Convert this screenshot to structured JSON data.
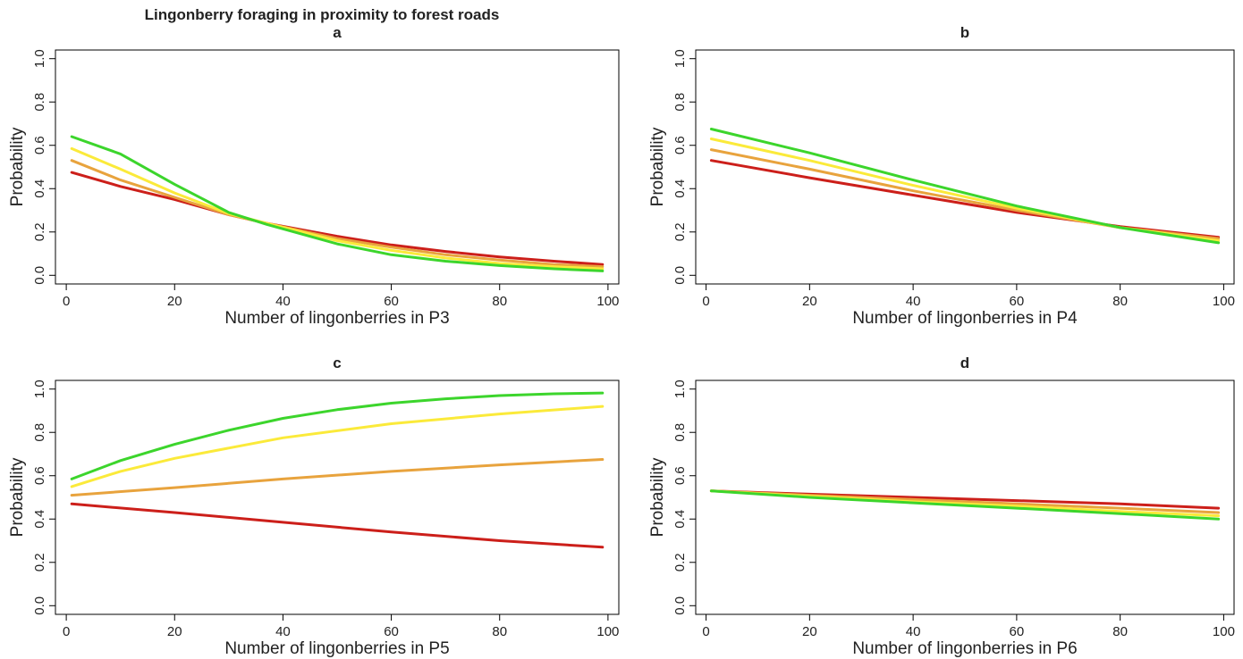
{
  "figure": {
    "title": "Lingonberry foraging in proximity to forest roads"
  },
  "colors": {
    "red": "#cc1f1a",
    "orange": "#e8a33d",
    "yellow": "#fbea3a",
    "green": "#3cd52c"
  },
  "chart_data": [
    {
      "type": "line",
      "panel": "a",
      "title": "a",
      "xlabel": "Number of lingonberries in P3",
      "ylabel": "Probability",
      "xlim": [
        -2,
        102
      ],
      "ylim": [
        -0.04,
        1.04
      ],
      "xticks": [
        0,
        20,
        40,
        60,
        80,
        100
      ],
      "yticks": [
        0.0,
        0.2,
        0.4,
        0.6,
        0.8,
        1.0
      ],
      "grid": false,
      "series": [
        {
          "color": "red",
          "x": [
            1,
            10,
            20,
            30,
            37,
            50,
            60,
            70,
            80,
            90,
            99
          ],
          "y": [
            0.475,
            0.41,
            0.35,
            0.28,
            0.24,
            0.18,
            0.14,
            0.11,
            0.085,
            0.065,
            0.05
          ]
        },
        {
          "color": "orange",
          "x": [
            1,
            10,
            20,
            30,
            37,
            50,
            60,
            70,
            80,
            90,
            99
          ],
          "y": [
            0.53,
            0.44,
            0.36,
            0.28,
            0.24,
            0.17,
            0.13,
            0.095,
            0.07,
            0.05,
            0.04
          ]
        },
        {
          "color": "yellow",
          "x": [
            1,
            10,
            20,
            30,
            37,
            50,
            60,
            70,
            80,
            90,
            99
          ],
          "y": [
            0.585,
            0.49,
            0.38,
            0.285,
            0.24,
            0.16,
            0.115,
            0.08,
            0.055,
            0.04,
            0.03
          ]
        },
        {
          "color": "green",
          "x": [
            1,
            10,
            20,
            30,
            37,
            50,
            60,
            70,
            80,
            90,
            99
          ],
          "y": [
            0.64,
            0.56,
            0.42,
            0.29,
            0.235,
            0.145,
            0.095,
            0.065,
            0.045,
            0.03,
            0.02
          ]
        }
      ]
    },
    {
      "type": "line",
      "panel": "b",
      "title": "b",
      "xlabel": "Number of lingonberries in P4",
      "ylabel": "Probability",
      "xlim": [
        -2,
        102
      ],
      "ylim": [
        -0.04,
        1.04
      ],
      "xticks": [
        0,
        20,
        40,
        60,
        80,
        100
      ],
      "yticks": [
        0.0,
        0.2,
        0.4,
        0.6,
        0.8,
        1.0
      ],
      "grid": false,
      "series": [
        {
          "color": "red",
          "x": [
            1,
            20,
            40,
            60,
            80,
            99
          ],
          "y": [
            0.53,
            0.45,
            0.37,
            0.29,
            0.225,
            0.175
          ]
        },
        {
          "color": "orange",
          "x": [
            1,
            20,
            40,
            60,
            80,
            99
          ],
          "y": [
            0.58,
            0.49,
            0.39,
            0.3,
            0.22,
            0.17
          ]
        },
        {
          "color": "yellow",
          "x": [
            1,
            20,
            40,
            60,
            80,
            99
          ],
          "y": [
            0.63,
            0.53,
            0.415,
            0.31,
            0.22,
            0.16
          ]
        },
        {
          "color": "green",
          "x": [
            1,
            20,
            40,
            60,
            80,
            99
          ],
          "y": [
            0.675,
            0.565,
            0.44,
            0.32,
            0.22,
            0.15
          ]
        }
      ]
    },
    {
      "type": "line",
      "panel": "c",
      "title": "c",
      "xlabel": "Number of lingonberries in P5",
      "ylabel": "Probability",
      "xlim": [
        -2,
        102
      ],
      "ylim": [
        -0.04,
        1.04
      ],
      "xticks": [
        0,
        20,
        40,
        60,
        80,
        100
      ],
      "yticks": [
        0.0,
        0.2,
        0.4,
        0.6,
        0.8,
        1.0
      ],
      "grid": false,
      "series": [
        {
          "color": "red",
          "x": [
            1,
            20,
            40,
            60,
            80,
            99
          ],
          "y": [
            0.47,
            0.43,
            0.385,
            0.34,
            0.3,
            0.27
          ]
        },
        {
          "color": "orange",
          "x": [
            1,
            20,
            40,
            60,
            80,
            99
          ],
          "y": [
            0.51,
            0.545,
            0.585,
            0.62,
            0.65,
            0.675
          ]
        },
        {
          "color": "yellow",
          "x": [
            1,
            10,
            20,
            40,
            60,
            80,
            99
          ],
          "y": [
            0.55,
            0.62,
            0.68,
            0.775,
            0.84,
            0.885,
            0.92
          ]
        },
        {
          "color": "green",
          "x": [
            1,
            10,
            20,
            30,
            40,
            50,
            60,
            70,
            80,
            90,
            99
          ],
          "y": [
            0.585,
            0.67,
            0.745,
            0.81,
            0.865,
            0.905,
            0.935,
            0.955,
            0.97,
            0.978,
            0.982
          ]
        }
      ]
    },
    {
      "type": "line",
      "panel": "d",
      "title": "d",
      "xlabel": "Number of lingonberries in P6",
      "ylabel": "Probability",
      "xlim": [
        -2,
        102
      ],
      "ylim": [
        -0.04,
        1.04
      ],
      "xticks": [
        0,
        20,
        40,
        60,
        80,
        100
      ],
      "yticks": [
        0.0,
        0.2,
        0.4,
        0.6,
        0.8,
        1.0
      ],
      "grid": false,
      "series": [
        {
          "color": "red",
          "x": [
            1,
            20,
            40,
            60,
            80,
            99
          ],
          "y": [
            0.53,
            0.515,
            0.5,
            0.485,
            0.47,
            0.45
          ]
        },
        {
          "color": "orange",
          "x": [
            1,
            20,
            40,
            60,
            80,
            99
          ],
          "y": [
            0.53,
            0.51,
            0.49,
            0.47,
            0.45,
            0.43
          ]
        },
        {
          "color": "yellow",
          "x": [
            1,
            20,
            40,
            60,
            80,
            99
          ],
          "y": [
            0.53,
            0.505,
            0.48,
            0.46,
            0.435,
            0.415
          ]
        },
        {
          "color": "green",
          "x": [
            1,
            20,
            40,
            60,
            80,
            99
          ],
          "y": [
            0.53,
            0.5,
            0.475,
            0.45,
            0.425,
            0.4
          ]
        }
      ]
    }
  ]
}
